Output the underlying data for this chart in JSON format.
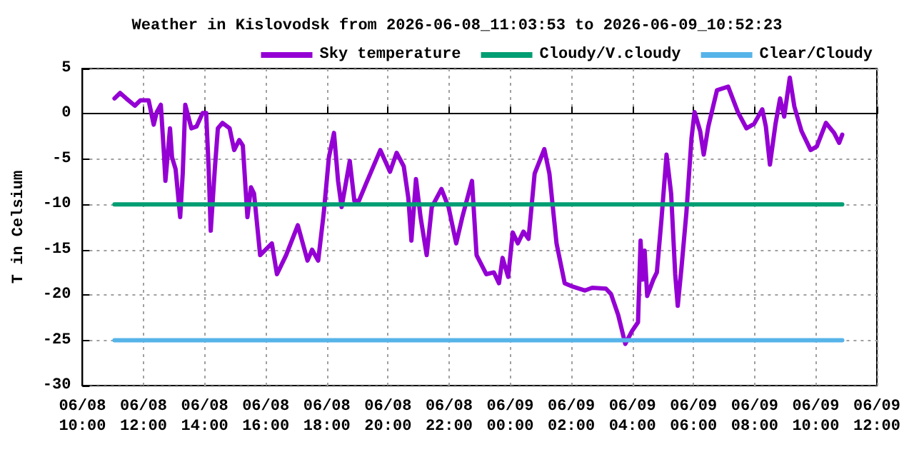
{
  "chart_data": {
    "type": "line",
    "title": "Weather in Kislovodsk from 2026-06-08_11:03:53 to 2026-06-09_10:52:23",
    "ylabel": "T in Celsium",
    "xlim": [
      "2026-06-08T10:00",
      "2026-06-09T12:00"
    ],
    "xticks": [
      {
        "value": "2026-06-08T10:00",
        "label": "06/08\n10:00"
      },
      {
        "value": "2026-06-08T12:00",
        "label": "06/08\n12:00"
      },
      {
        "value": "2026-06-08T14:00",
        "label": "06/08\n14:00"
      },
      {
        "value": "2026-06-08T16:00",
        "label": "06/08\n16:00"
      },
      {
        "value": "2026-06-08T18:00",
        "label": "06/08\n18:00"
      },
      {
        "value": "2026-06-08T20:00",
        "label": "06/08\n20:00"
      },
      {
        "value": "2026-06-08T22:00",
        "label": "06/08\n22:00"
      },
      {
        "value": "2026-06-09T00:00",
        "label": "06/09\n00:00"
      },
      {
        "value": "2026-06-09T02:00",
        "label": "06/09\n02:00"
      },
      {
        "value": "2026-06-09T04:00",
        "label": "06/09\n04:00"
      },
      {
        "value": "2026-06-09T06:00",
        "label": "06/09\n06:00"
      },
      {
        "value": "2026-06-09T08:00",
        "label": "06/09\n08:00"
      },
      {
        "value": "2026-06-09T10:00",
        "label": "06/09\n10:00"
      },
      {
        "value": "2026-06-09T12:00",
        "label": "06/09\n12:00"
      }
    ],
    "ylim": [
      -30,
      5
    ],
    "yticks": [
      -30,
      -25,
      -20,
      -15,
      -10,
      -5,
      0,
      5
    ],
    "grid": true,
    "legend": "top right",
    "series": [
      {
        "name": "Sky temperature",
        "color": "#9400d3",
        "x": [
          "2026-06-08T11:03",
          "2026-06-08T11:14",
          "2026-06-08T11:26",
          "2026-06-08T11:43",
          "2026-06-08T11:54",
          "2026-06-08T12:10",
          "2026-06-08T12:20",
          "2026-06-08T12:26",
          "2026-06-08T12:34",
          "2026-06-08T12:40",
          "2026-06-08T12:43",
          "2026-06-08T12:52",
          "2026-06-08T12:56",
          "2026-06-08T13:03",
          "2026-06-08T13:12",
          "2026-06-08T13:17",
          "2026-06-08T13:22",
          "2026-06-08T13:34",
          "2026-06-08T13:44",
          "2026-06-08T13:56",
          "2026-06-08T14:03",
          "2026-06-08T14:08",
          "2026-06-08T14:12",
          "2026-06-08T14:20",
          "2026-06-08T14:26",
          "2026-06-08T14:35",
          "2026-06-08T14:49",
          "2026-06-08T14:58",
          "2026-06-08T15:08",
          "2026-06-08T15:15",
          "2026-06-08T15:24",
          "2026-06-08T15:31",
          "2026-06-08T15:37",
          "2026-06-08T15:49",
          "2026-06-08T16:12",
          "2026-06-08T16:22",
          "2026-06-08T16:40",
          "2026-06-08T17:03",
          "2026-06-08T17:22",
          "2026-06-08T17:31",
          "2026-06-08T17:43",
          "2026-06-08T17:54",
          "2026-06-08T18:04",
          "2026-06-08T18:14",
          "2026-06-08T18:22",
          "2026-06-08T18:29",
          "2026-06-08T18:45",
          "2026-06-08T18:54",
          "2026-06-08T19:03",
          "2026-06-08T19:17",
          "2026-06-08T19:45",
          "2026-06-08T20:04",
          "2026-06-08T20:17",
          "2026-06-08T20:31",
          "2026-06-08T20:40",
          "2026-06-08T20:46",
          "2026-06-08T20:55",
          "2026-06-08T21:04",
          "2026-06-08T21:16",
          "2026-06-08T21:26",
          "2026-06-08T21:45",
          "2026-06-08T21:59",
          "2026-06-08T22:14",
          "2026-06-08T22:26",
          "2026-06-08T22:45",
          "2026-06-08T22:54",
          "2026-06-08T23:13",
          "2026-06-08T23:28",
          "2026-06-08T23:38",
          "2026-06-08T23:45",
          "2026-06-08T23:56",
          "2026-06-09T00:05",
          "2026-06-09T00:15",
          "2026-06-09T00:26",
          "2026-06-09T00:36",
          "2026-06-09T00:48",
          "2026-06-09T01:07",
          "2026-06-09T01:17",
          "2026-06-09T01:31",
          "2026-06-09T01:47",
          "2026-06-09T02:04",
          "2026-06-09T02:27",
          "2026-06-09T02:41",
          "2026-06-09T03:08",
          "2026-06-09T03:18",
          "2026-06-09T03:32",
          "2026-06-09T03:46",
          "2026-06-09T03:59",
          "2026-06-09T04:11",
          "2026-06-09T04:16",
          "2026-06-09T04:20",
          "2026-06-09T04:24",
          "2026-06-09T04:29",
          "2026-06-09T04:41",
          "2026-06-09T04:48",
          "2026-06-09T04:57",
          "2026-06-09T05:07",
          "2026-06-09T05:16",
          "2026-06-09T05:24",
          "2026-06-09T05:29",
          "2026-06-09T05:36",
          "2026-06-09T05:46",
          "2026-06-09T05:56",
          "2026-06-09T06:02",
          "2026-06-09T06:13",
          "2026-06-09T06:20",
          "2026-06-09T06:29",
          "2026-06-09T06:46",
          "2026-06-09T07:08",
          "2026-06-09T07:27",
          "2026-06-09T07:44",
          "2026-06-09T07:59",
          "2026-06-09T08:15",
          "2026-06-09T08:22",
          "2026-06-09T08:30",
          "2026-06-09T08:41",
          "2026-06-09T08:50",
          "2026-06-09T08:58",
          "2026-06-09T09:09",
          "2026-06-09T09:18",
          "2026-06-09T09:32",
          "2026-06-09T09:50",
          "2026-06-09T10:02",
          "2026-06-09T10:20",
          "2026-06-09T10:36",
          "2026-06-09T10:46",
          "2026-06-09T10:52"
        ],
        "values": [
          1.7,
          2.3,
          1.7,
          0.9,
          1.5,
          1.5,
          -1.2,
          0.2,
          1.0,
          -4.3,
          -7.4,
          -1.6,
          -4.8,
          -6.1,
          -11.4,
          -6.6,
          1.0,
          -1.6,
          -1.4,
          0.1,
          0.1,
          -6.1,
          -12.9,
          -6.1,
          -1.6,
          -1.0,
          -1.6,
          -4.0,
          -2.9,
          -3.5,
          -11.4,
          -8.1,
          -8.8,
          -15.6,
          -14.3,
          -17.7,
          -15.6,
          -12.3,
          -16.2,
          -15.0,
          -16.2,
          -10.9,
          -4.8,
          -2.1,
          -7.4,
          -10.3,
          -5.2,
          -9.6,
          -9.6,
          -7.7,
          -4.0,
          -6.4,
          -4.3,
          -5.8,
          -9.3,
          -14.0,
          -7.2,
          -11.4,
          -15.6,
          -10.3,
          -8.3,
          -10.3,
          -14.3,
          -11.4,
          -7.4,
          -15.6,
          -17.7,
          -17.5,
          -18.7,
          -15.9,
          -18.0,
          -13.1,
          -14.3,
          -13.0,
          -13.8,
          -6.6,
          -3.9,
          -6.6,
          -14.3,
          -18.7,
          -19.1,
          -19.5,
          -19.2,
          -19.3,
          -19.9,
          -22.2,
          -25.4,
          -24.0,
          -23.0,
          -14.0,
          -18.3,
          -15.1,
          -20.1,
          -18.3,
          -17.5,
          -11.7,
          -4.5,
          -8.8,
          -17.7,
          -21.2,
          -17.2,
          -10.9,
          -2.7,
          0.2,
          -1.9,
          -4.5,
          -1.4,
          2.6,
          3.0,
          0.2,
          -1.6,
          -1.1,
          0.5,
          -1.4,
          -5.6,
          -1.1,
          1.7,
          -0.3,
          4.0,
          0.8,
          -1.9,
          -4.0,
          -3.6,
          -1.0,
          -2.1,
          -3.2,
          -2.3
        ]
      },
      {
        "name": "Cloudy/V.cloudy",
        "color": "#009e73",
        "x": [
          "2026-06-08T11:03",
          "2026-06-09T10:52"
        ],
        "values": [
          -10,
          -10
        ]
      },
      {
        "name": "Clear/Cloudy",
        "color": "#56b4e9",
        "x": [
          "2026-06-08T11:03",
          "2026-06-09T10:52"
        ],
        "values": [
          -25,
          -25
        ]
      }
    ]
  }
}
